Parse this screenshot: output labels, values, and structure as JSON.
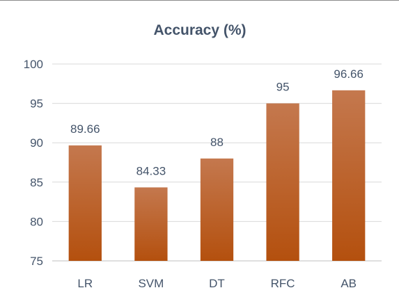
{
  "chart_data": {
    "type": "bar",
    "title": "Accuracy (%)",
    "categories": [
      "LR",
      "SVM",
      "DT",
      "RFC",
      "AB"
    ],
    "values": [
      89.66,
      84.33,
      88,
      95,
      96.66
    ],
    "data_labels": [
      "89.66",
      "84.33",
      "88",
      "95",
      "96.66"
    ],
    "xlabel": "",
    "ylabel": "",
    "ylim": [
      75,
      100
    ],
    "yticks": [
      75,
      80,
      85,
      90,
      95,
      100
    ],
    "grid": true,
    "legend": "none",
    "colors": {
      "bar_top": "#c4784e",
      "bar_bottom": "#b4500e",
      "text": "#44546a",
      "grid": "#d9d9d9",
      "axis": "#bfbfbf"
    }
  }
}
